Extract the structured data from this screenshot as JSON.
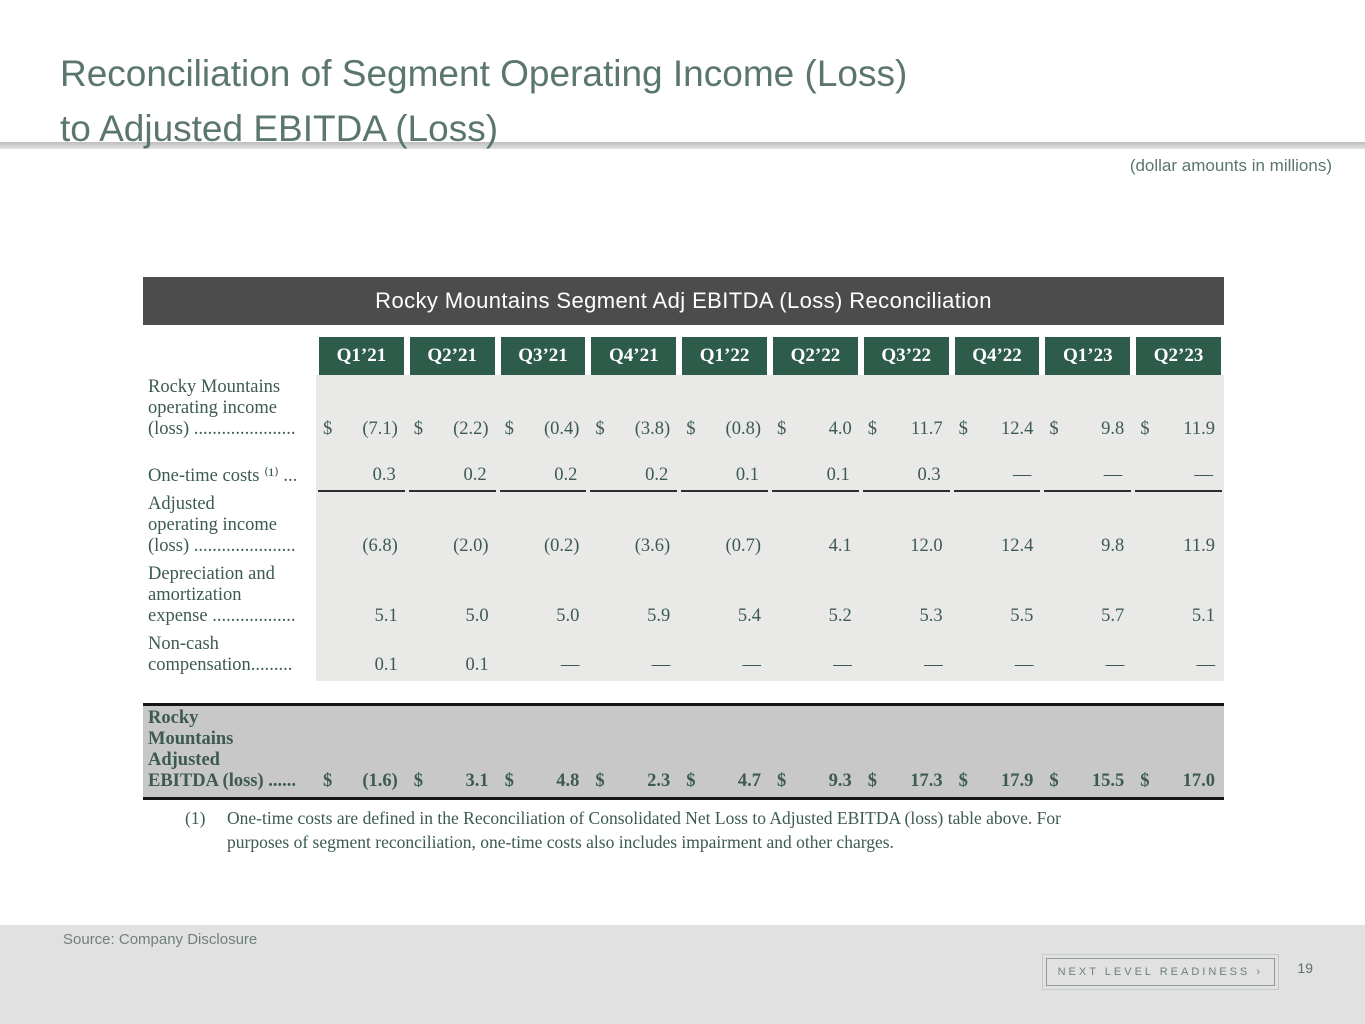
{
  "slide": {
    "title_line1": "Reconciliation of Segment Operating Income (Loss)",
    "title_line2": "to Adjusted EBITDA (Loss)",
    "units_note": "(dollar amounts in millions)",
    "source": "Source: Company Disclosure",
    "badge": "NEXT LEVEL READINESS ›",
    "page_number": "19"
  },
  "table": {
    "title": "Rocky Mountains Segment Adj EBITDA (Loss) Reconciliation",
    "columns": [
      "Q1’21",
      "Q2’21",
      "Q3’21",
      "Q4’21",
      "Q1’22",
      "Q2’22",
      "Q3’22",
      "Q4’22",
      "Q1’23",
      "Q2’23"
    ],
    "rows": [
      {
        "label_lines": [
          "Rocky Mountains",
          "operating income",
          "(loss) ......................"
        ],
        "dollar": true,
        "rule": false,
        "values": [
          "(7.1)",
          "(2.2)",
          "(0.4)",
          "(3.8)",
          "(0.8)",
          "4.0",
          "11.7",
          "12.4",
          "9.8",
          "11.9"
        ]
      },
      {
        "label_lines": [
          "One-time costs ⁽¹⁾ ..."
        ],
        "dollar": false,
        "rule": true,
        "values": [
          "0.3",
          "0.2",
          "0.2",
          "0.2",
          "0.1",
          "0.1",
          "0.3",
          "—",
          "—",
          "—"
        ]
      },
      {
        "label_lines": [
          "Adjusted",
          "operating income",
          "(loss) ......................"
        ],
        "dollar": false,
        "rule": false,
        "values": [
          "(6.8)",
          "(2.0)",
          "(0.2)",
          "(3.6)",
          "(0.7)",
          "4.1",
          "12.0",
          "12.4",
          "9.8",
          "11.9"
        ]
      },
      {
        "label_lines": [
          "Depreciation and",
          "amortization",
          "expense .................."
        ],
        "dollar": false,
        "rule": false,
        "values": [
          "5.1",
          "5.0",
          "5.0",
          "5.9",
          "5.4",
          "5.2",
          "5.3",
          "5.5",
          "5.7",
          "5.1"
        ]
      },
      {
        "label_lines": [
          "Non-cash",
          "compensation........."
        ],
        "dollar": false,
        "rule": false,
        "values": [
          "0.1",
          "0.1",
          "—",
          "—",
          "—",
          "—",
          "—",
          "—",
          "—",
          "—"
        ]
      }
    ],
    "total_row": {
      "label_lines": [
        "Rocky",
        "Mountains",
        "Adjusted",
        "EBITDA (loss) ......"
      ],
      "dollar": true,
      "rule": false,
      "values": [
        "(1.6)",
        "3.1",
        "4.8",
        "2.3",
        "4.7",
        "9.3",
        "17.3",
        "17.9",
        "15.5",
        "17.0"
      ]
    },
    "footnote": {
      "marker": "(1)",
      "text": "One-time costs are defined in the Reconciliation of Consolidated Net Loss to Adjusted EBITDA (loss) table above. For purposes of segment reconciliation, one-time costs also includes impairment and other charges."
    }
  },
  "colors": {
    "title_color": "#5b766e",
    "table_text": "#3d5a52",
    "quarter_box_green": "#2e5c4b",
    "table_title_bar": "#4c4c4c",
    "table_body_bg": "#e9e9e8",
    "total_row_bg": "#c8c8c8",
    "footer_bg": "#e1e1e1"
  }
}
